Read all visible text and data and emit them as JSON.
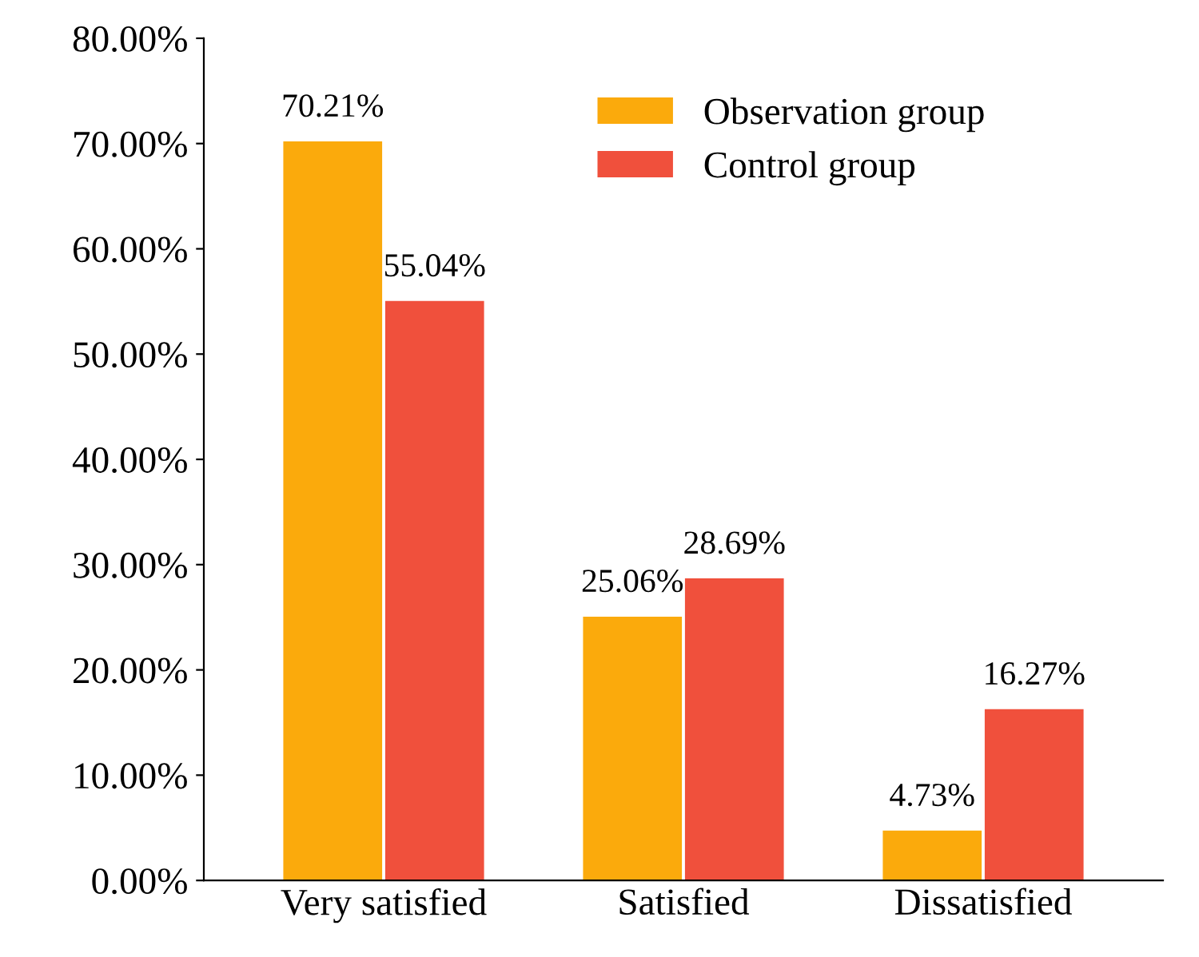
{
  "chart_data": {
    "type": "bar",
    "categories": [
      "Very satisfied",
      "Satisfied",
      "Dissatisfied"
    ],
    "series": [
      {
        "name": "Observation group",
        "color": "#fbaa0c",
        "values": [
          70.21,
          25.06,
          4.73
        ],
        "value_labels": [
          "70.21%",
          "25.06%",
          "4.73%"
        ]
      },
      {
        "name": "Control group",
        "color": "#f0503c",
        "values": [
          55.04,
          28.69,
          16.27
        ],
        "value_labels": [
          "55.04%",
          "28.69%",
          "16.27%"
        ]
      }
    ],
    "ylim": [
      0,
      80
    ],
    "yticks": [
      {
        "value": 0,
        "label": "0.00%"
      },
      {
        "value": 10,
        "label": "10.00%"
      },
      {
        "value": 20,
        "label": "20.00%"
      },
      {
        "value": 30,
        "label": "30.00%"
      },
      {
        "value": 40,
        "label": "40.00%"
      },
      {
        "value": 50,
        "label": "50.00%"
      },
      {
        "value": 60,
        "label": "60.00%"
      },
      {
        "value": 70,
        "label": "70.00%"
      },
      {
        "value": 80,
        "label": "80.00%"
      }
    ],
    "grid": false,
    "legend": "top right"
  }
}
